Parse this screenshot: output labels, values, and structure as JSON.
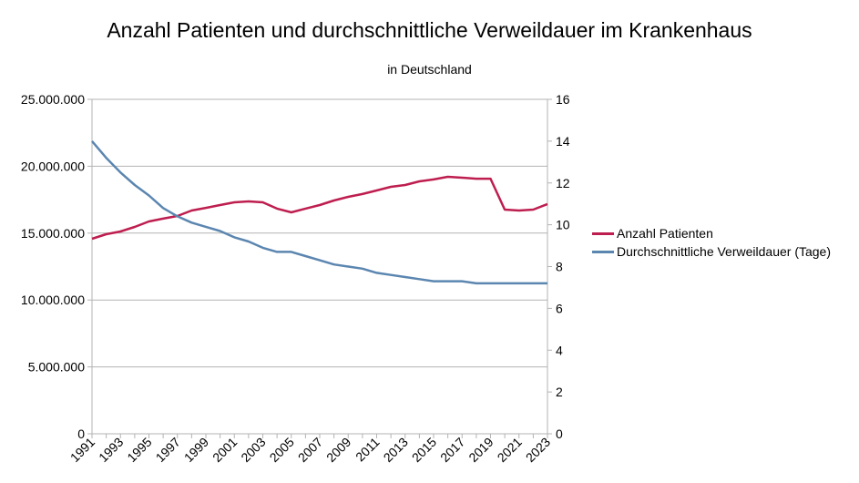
{
  "chart_data": {
    "type": "line",
    "title": "Anzahl Patienten und durchschnittliche Verweildauer im Krankenhaus",
    "subtitle": "in Deutschland",
    "xlabel": "",
    "ylabel": "",
    "y2label": "",
    "x": [
      1991,
      1992,
      1993,
      1994,
      1995,
      1996,
      1997,
      1998,
      1999,
      2000,
      2001,
      2002,
      2003,
      2004,
      2005,
      2006,
      2007,
      2008,
      2009,
      2010,
      2011,
      2012,
      2013,
      2014,
      2015,
      2016,
      2017,
      2018,
      2019,
      2020,
      2021,
      2022,
      2023
    ],
    "x_tick_labels": [
      "1991",
      "1993",
      "1995",
      "1997",
      "1999",
      "2001",
      "2003",
      "2005",
      "2007",
      "2009",
      "2011",
      "2013",
      "2015",
      "2017",
      "2019",
      "2021",
      "2023"
    ],
    "ylim": [
      0,
      25000000
    ],
    "y_tick_labels": [
      "0",
      "5.000.000",
      "10.000.000",
      "15.000.000",
      "20.000.000",
      "25.000.000"
    ],
    "y_ticks": [
      0,
      5000000,
      10000000,
      15000000,
      20000000,
      25000000
    ],
    "y2lim": [
      0,
      16
    ],
    "y2_tick_labels": [
      "0",
      "2",
      "4",
      "6",
      "8",
      "10",
      "12",
      "14",
      "16"
    ],
    "y2_ticks": [
      0,
      2,
      4,
      6,
      8,
      10,
      12,
      14,
      16
    ],
    "grid": true,
    "legend_position": "right",
    "series": [
      {
        "name": "Anzahl Patienten",
        "axis": "left",
        "color": "#be1e4f",
        "values": [
          14580000,
          14920000,
          15120000,
          15460000,
          15870000,
          16080000,
          16280000,
          16690000,
          16890000,
          17100000,
          17300000,
          17370000,
          17300000,
          16830000,
          16550000,
          16830000,
          17100000,
          17440000,
          17710000,
          17920000,
          18190000,
          18460000,
          18600000,
          18870000,
          19010000,
          19210000,
          19140000,
          19070000,
          19070000,
          16760000,
          16690000,
          16760000,
          17170000
        ]
      },
      {
        "name": "Durchschnittliche Verweildauer (Tage)",
        "axis": "right",
        "color": "#5b86b0",
        "values": [
          14.0,
          13.2,
          12.5,
          11.9,
          11.4,
          10.8,
          10.4,
          10.1,
          9.9,
          9.7,
          9.4,
          9.2,
          8.9,
          8.7,
          8.7,
          8.5,
          8.3,
          8.1,
          8.0,
          7.9,
          7.7,
          7.6,
          7.5,
          7.4,
          7.3,
          7.3,
          7.3,
          7.2,
          7.2,
          7.2,
          7.2,
          7.2,
          7.2
        ]
      }
    ]
  }
}
